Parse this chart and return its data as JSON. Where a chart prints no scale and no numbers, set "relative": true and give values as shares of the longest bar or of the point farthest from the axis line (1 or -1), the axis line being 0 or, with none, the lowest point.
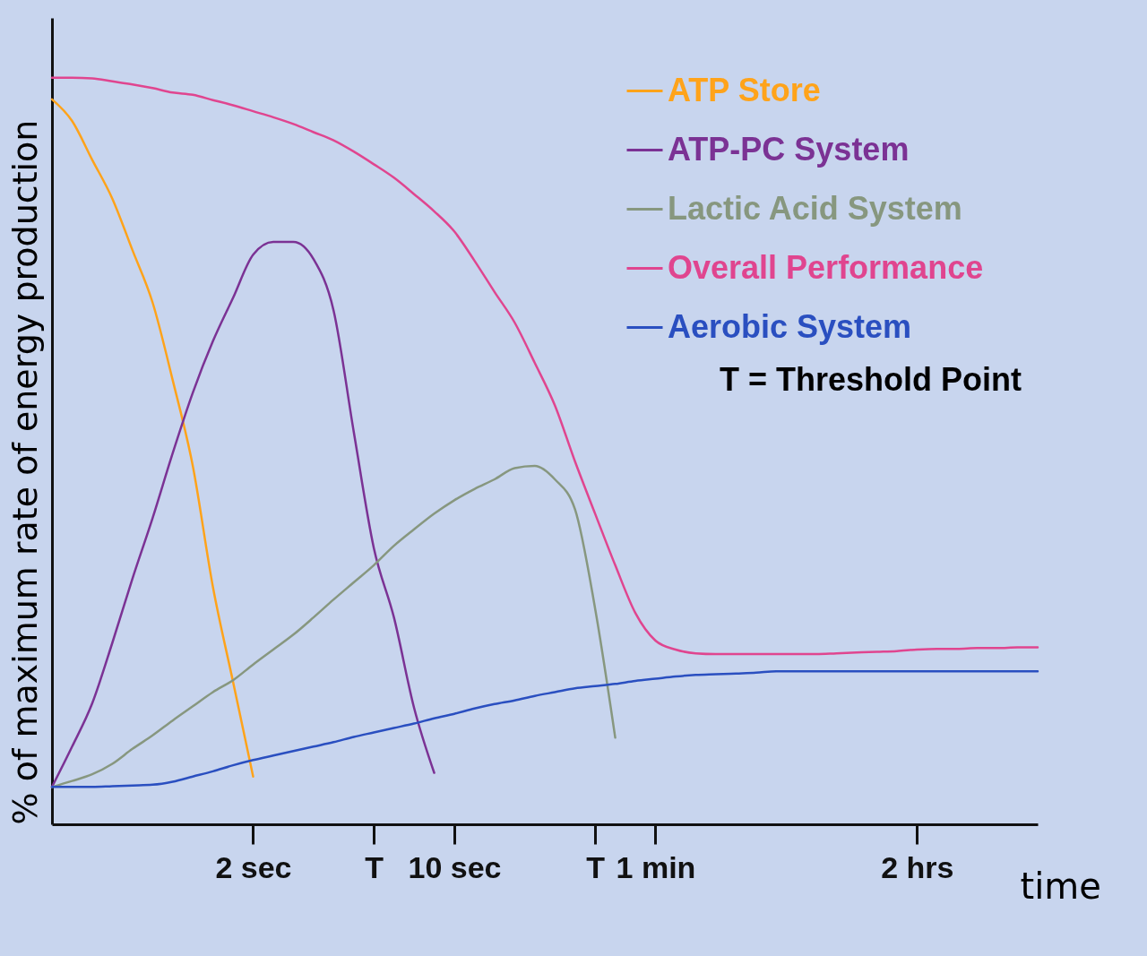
{
  "chart_data": {
    "type": "line",
    "relative": true,
    "xlabel": "time",
    "ylabel": "% of maximum rate of energy production",
    "categories": [
      null,
      null,
      null,
      null,
      null,
      null,
      null,
      null,
      null,
      null,
      "2 sec",
      null,
      null,
      null,
      null,
      null,
      "T",
      null,
      null,
      null,
      "10 sec",
      null,
      null,
      null,
      null,
      null,
      null,
      "T",
      null,
      null,
      "1 min",
      null,
      null,
      null,
      null,
      null,
      null,
      null,
      null,
      null,
      null,
      null,
      null,
      "2 hrs",
      null,
      null,
      null,
      null,
      null,
      null
    ],
    "tick_labels": "x",
    "legend": "top right",
    "marker": "none",
    "line_style": "solid",
    "annotations": [
      "T = Threshold Point"
    ],
    "series": [
      {
        "name": "ATP Store",
        "color": "#ffa31a",
        "values": [
          0.971,
          0.942,
          0.89,
          0.838,
          0.769,
          0.699,
          0.595,
          0.48,
          0.318,
          0.191,
          0.064,
          null,
          null,
          null,
          null,
          null,
          null,
          null,
          null,
          null,
          null,
          null,
          null,
          null,
          null,
          null,
          null,
          null,
          null,
          null,
          null,
          null,
          null,
          null,
          null,
          null,
          null,
          null,
          null,
          null,
          null,
          null,
          null,
          null,
          null,
          null,
          null,
          null,
          null,
          null
        ]
      },
      {
        "name": "ATP-PC System",
        "color": "#7b3294",
        "values": [
          0.05,
          0.104,
          0.162,
          0.243,
          0.329,
          0.41,
          0.497,
          0.578,
          0.647,
          0.705,
          0.763,
          0.78,
          0.78,
          0.757,
          0.688,
          0.526,
          0.37,
          0.277,
          0.156,
          0.069,
          null,
          null,
          null,
          null,
          null,
          null,
          null,
          null,
          null,
          null,
          null,
          null,
          null,
          null,
          null,
          null,
          null,
          null,
          null,
          null,
          null,
          null,
          null,
          null,
          null,
          null,
          null,
          null,
          null,
          null
        ]
      },
      {
        "name": "Lactic Acid System",
        "color": "#87977f",
        "values": [
          0.05,
          0.058,
          0.067,
          0.081,
          0.101,
          0.119,
          0.139,
          0.158,
          0.177,
          0.193,
          0.214,
          0.234,
          0.254,
          0.277,
          0.301,
          0.324,
          0.347,
          0.373,
          0.395,
          0.416,
          0.434,
          0.449,
          0.462,
          0.477,
          0.48,
          0.462,
          0.422,
          0.289,
          0.116,
          null,
          null,
          null,
          null,
          null,
          null,
          null,
          null,
          null,
          null,
          null,
          null,
          null,
          null,
          null,
          null,
          null,
          null,
          null,
          null,
          null
        ]
      },
      {
        "name": "Overall Performance",
        "color": "#e0458f",
        "values": [
          1,
          1,
          0.999,
          0.995,
          0.991,
          0.986,
          0.98,
          0.977,
          0.97,
          0.963,
          0.955,
          0.947,
          0.938,
          0.927,
          0.916,
          0.901,
          0.884,
          0.866,
          0.844,
          0.821,
          0.794,
          0.755,
          0.713,
          0.672,
          0.618,
          0.561,
          0.486,
          0.416,
          0.347,
          0.283,
          0.246,
          0.234,
          0.229,
          0.228,
          0.228,
          0.228,
          0.228,
          0.228,
          0.228,
          0.229,
          0.23,
          0.231,
          0.232,
          0.234,
          0.235,
          0.235,
          0.236,
          0.236,
          0.237,
          0.237
        ]
      },
      {
        "name": "Aerobic System",
        "color": "#2a4fc0",
        "values": [
          0.05,
          0.05,
          0.05,
          0.051,
          0.052,
          0.053,
          0.057,
          0.064,
          0.071,
          0.079,
          0.086,
          0.092,
          0.098,
          0.104,
          0.11,
          0.117,
          0.123,
          0.129,
          0.135,
          0.142,
          0.148,
          0.155,
          0.161,
          0.166,
          0.172,
          0.177,
          0.182,
          0.185,
          0.188,
          0.192,
          0.195,
          0.198,
          0.2,
          0.201,
          0.202,
          0.203,
          0.205,
          0.205,
          0.205,
          0.205,
          0.205,
          0.205,
          0.205,
          0.205,
          0.205,
          0.205,
          0.205,
          0.205,
          0.205,
          0.205
        ]
      }
    ]
  }
}
